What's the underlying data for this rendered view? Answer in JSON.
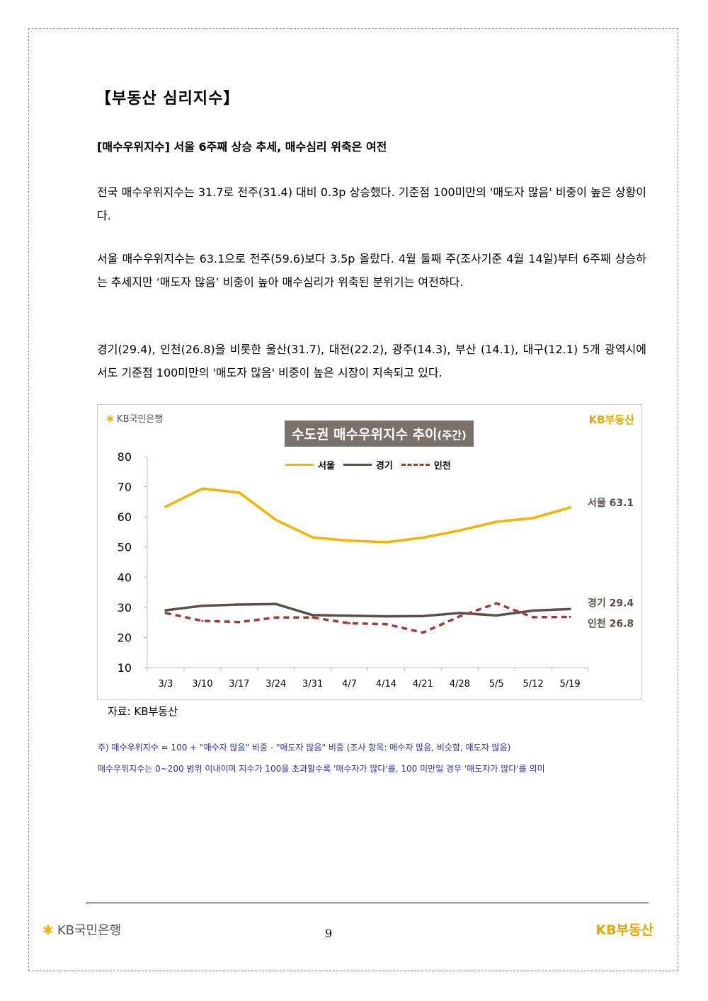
{
  "section_title": "【부동산 심리지수】",
  "headline": "[매수우위지수] 서울 6주째 상승 추세, 매수심리 위축은 여전",
  "paragraphs": [
    "전국 매수우위지수는 31.7로 전주(31.4) 대비 0.3p 상승했다. 기준점 100미만의 '매도자 많음' 비중이 높은 상황이다.",
    "서울 매수우위지수는 63.1으로 전주(59.6)보다 3.5p 올랐다. 4월 둘째 주(조사기준 4월 14일)부터 6주째 상승하는 추세지만 ‘매도자 많음’ 비중이 높아 매수심리가 위축된 분위기는 여전하다.",
    "경기(29.4), 인천(26.8)을 비롯한 울산(31.7), 대전(22.2), 광주(14.3), 부산 (14.1), 대구(12.1) 5개 광역시에서도 기준점 100미만의 '매도자 많음' 비중이 높은 시장이 지속되고 있다."
  ],
  "chart_logo_left": "KB국민은행",
  "chart_logo_right": "KB부동산",
  "chart_data": {
    "type": "line",
    "title": "수도권 매수우위지수 추이",
    "subtitle": "(주간)",
    "categories": [
      "3/3",
      "3/10",
      "3/17",
      "3/24",
      "3/31",
      "4/7",
      "4/14",
      "4/21",
      "4/28",
      "5/5",
      "5/12",
      "5/19"
    ],
    "ylim": [
      10,
      80
    ],
    "yticks": [
      10,
      20,
      30,
      40,
      50,
      60,
      70,
      80
    ],
    "legend_position": "top",
    "grid": false,
    "series": [
      {
        "name": "서울",
        "color": "#f4b400",
        "dash": "solid",
        "values": [
          63.4,
          69.4,
          68.1,
          59.0,
          53.2,
          52.1,
          51.6,
          53.1,
          55.5,
          58.4,
          59.6,
          63.1
        ],
        "end_label": "서울 63.1"
      },
      {
        "name": "경기",
        "color": "#595049",
        "dash": "solid",
        "values": [
          29.0,
          30.5,
          30.9,
          31.1,
          27.4,
          27.2,
          27.0,
          27.1,
          28.1,
          27.3,
          28.9,
          29.4
        ],
        "end_label": "경기 29.4"
      },
      {
        "name": "인천",
        "color": "#9e3c3c",
        "dash": "dashed",
        "values": [
          28.1,
          25.5,
          25.1,
          26.6,
          26.6,
          24.7,
          24.4,
          21.6,
          27.0,
          31.3,
          26.7,
          26.8
        ],
        "end_label": "인천 26.8"
      }
    ]
  },
  "source": "자료: KB부동산",
  "notes": [
    "주) 매수우위지수 = 100 + \"매수자 많음\" 비중 - \"매도자 많음\" 비중   (조사 항목: 매수자 많음, 비슷함, 매도자 많음)",
    "매수우위지수는 0~200 범위 이내이며 지수가 100을 초과할수록 '매수자가 많다'를, 100 미만일 경우 '매도자가 많다'를 의미"
  ],
  "footer": {
    "left_logo": "KB국민은행",
    "page_number": "9",
    "right_logo": "KB부동산"
  }
}
